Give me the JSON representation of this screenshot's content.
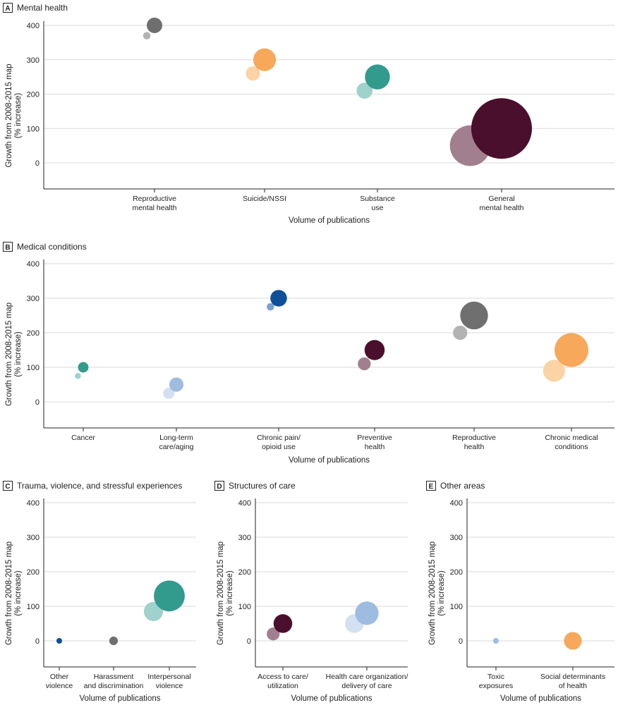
{
  "chart_data": [
    {
      "type": "bubble",
      "id": "A",
      "letter": "A",
      "title": "Mental health",
      "xlabel": "Volume of publications",
      "ylabel": [
        "Growth from 2008-2015 map",
        "(% increase)"
      ],
      "ylim": [
        -80,
        400
      ],
      "yticks": [
        "400",
        "300",
        "200",
        "100",
        "0"
      ],
      "categories": [
        {
          "label": [
            "Reproductive",
            "mental health"
          ],
          "bubbles": [
            {
              "y": 370,
              "size": 1.5,
              "color": "#b3b3b3"
            },
            {
              "y": 400,
              "size": 6.5,
              "color": "#6f6f6f"
            }
          ]
        },
        {
          "label": [
            "Suicide/NSSI"
          ],
          "bubbles": [
            {
              "y": 260,
              "size": 5.5,
              "color": "#fbd3a5"
            },
            {
              "y": 300,
              "size": 14,
              "color": "#f7a85a"
            }
          ]
        },
        {
          "label": [
            "Substance",
            "use"
          ],
          "bubbles": [
            {
              "y": 210,
              "size": 7,
              "color": "#9fd2cc"
            },
            {
              "y": 250,
              "size": 17,
              "color": "#339a8e"
            }
          ]
        },
        {
          "label": [
            "General",
            "mental health"
          ],
          "bubbles": [
            {
              "y": 50,
              "size": 45,
              "color": "#a27f8e"
            },
            {
              "y": 100,
              "size": 100,
              "color": "#4a0f2c"
            }
          ]
        }
      ]
    },
    {
      "type": "bubble",
      "id": "B",
      "letter": "B",
      "title": "Medical conditions",
      "xlabel": "Volume of publications",
      "ylabel": [
        "Growth from 2008-2015 map",
        "(% increase)"
      ],
      "ylim": [
        -80,
        400
      ],
      "yticks": [
        "400",
        "300",
        "200",
        "100",
        "0"
      ],
      "categories": [
        {
          "label": [
            "Cancer"
          ],
          "bubbles": [
            {
              "y": 75,
              "size": 1,
              "color": "#9fd2cc"
            },
            {
              "y": 100,
              "size": 3,
              "color": "#339a8e"
            }
          ]
        },
        {
          "label": [
            "Long-term",
            "care/aging"
          ],
          "bubbles": [
            {
              "y": 25,
              "size": 3.5,
              "color": "#d2e0f1"
            },
            {
              "y": 50,
              "size": 5.5,
              "color": "#9dbce0"
            }
          ]
        },
        {
          "label": [
            "Chronic pain/",
            "opioid use"
          ],
          "bubbles": [
            {
              "y": 275,
              "size": 1.5,
              "color": "#7f9fd0"
            },
            {
              "y": 300,
              "size": 7.5,
              "color": "#0f4f98"
            }
          ]
        },
        {
          "label": [
            "Preventive",
            "health"
          ],
          "bubbles": [
            {
              "y": 110,
              "size": 4.5,
              "color": "#a27f8e"
            },
            {
              "y": 150,
              "size": 11,
              "color": "#4a0f2c"
            }
          ]
        },
        {
          "label": [
            "Reproductive",
            "health"
          ],
          "bubbles": [
            {
              "y": 200,
              "size": 5.5,
              "color": "#b3b3b3"
            },
            {
              "y": 250,
              "size": 21,
              "color": "#6f6f6f"
            }
          ]
        },
        {
          "label": [
            "Chronic medical",
            "conditions"
          ],
          "bubbles": [
            {
              "y": 90,
              "size": 13,
              "color": "#fbd3a5"
            },
            {
              "y": 150,
              "size": 31,
              "color": "#f7a85a"
            }
          ]
        }
      ]
    },
    {
      "type": "bubble",
      "id": "C",
      "letter": "C",
      "title": "Trauma, violence, and stressful experiences",
      "xlabel": "Volume of publications",
      "ylabel": [
        "Growth from 2008-2015 map",
        "(% increase)"
      ],
      "ylim": [
        -80,
        400
      ],
      "yticks": [
        "400",
        "300",
        "200",
        "100",
        "0"
      ],
      "categories": [
        {
          "label": [
            "Other",
            "violence"
          ],
          "bubbles": [
            {
              "y": 0,
              "size": 0.5,
              "color": "#0f4f98"
            }
          ]
        },
        {
          "label": [
            "Harassment",
            "and discrimination"
          ],
          "bubbles": [
            {
              "y": 0,
              "size": 2,
              "color": "#6f6f6f"
            }
          ]
        },
        {
          "label": [
            "Interpersonal",
            "violence"
          ],
          "bubbles": [
            {
              "y": 85,
              "size": 10,
              "color": "#9fd2cc"
            },
            {
              "y": 130,
              "size": 26,
              "color": "#339a8e"
            }
          ]
        }
      ]
    },
    {
      "type": "bubble",
      "id": "D",
      "letter": "D",
      "title": "Structures of care",
      "xlabel": "Volume of publications",
      "ylabel": [
        "Growth from 2008-2015 map",
        "(% increase)"
      ],
      "ylim": [
        -80,
        400
      ],
      "yticks": [
        "400",
        "300",
        "200",
        "100",
        "0"
      ],
      "categories": [
        {
          "label": [
            "Access to care/",
            "utilization"
          ],
          "bubbles": [
            {
              "y": 20,
              "size": 4.5,
              "color": "#a27f8e"
            },
            {
              "y": 50,
              "size": 9.5,
              "color": "#4a0f2c"
            }
          ]
        },
        {
          "label": [
            "Health care organization/",
            "delivery of care"
          ],
          "bubbles": [
            {
              "y": 50,
              "size": 9.5,
              "color": "#d2e0f1"
            },
            {
              "y": 80,
              "size": 15,
              "color": "#9dbce0"
            }
          ]
        }
      ]
    },
    {
      "type": "bubble",
      "id": "E",
      "letter": "E",
      "title": "Other areas",
      "xlabel": "Volume of publications",
      "ylabel": [
        "Growth from 2008-2015 map",
        "(% increase)"
      ],
      "ylim": [
        -80,
        400
      ],
      "yticks": [
        "400",
        "300",
        "200",
        "100",
        "0"
      ],
      "categories": [
        {
          "label": [
            "Toxic",
            "exposures"
          ],
          "bubbles": [
            {
              "y": 0,
              "size": 0.5,
              "color": "#9dbce0"
            }
          ]
        },
        {
          "label": [
            "Social determinants",
            "of health"
          ],
          "bubbles": [
            {
              "y": 0,
              "size": 8.5,
              "color": "#f7a85a"
            }
          ]
        }
      ]
    }
  ]
}
